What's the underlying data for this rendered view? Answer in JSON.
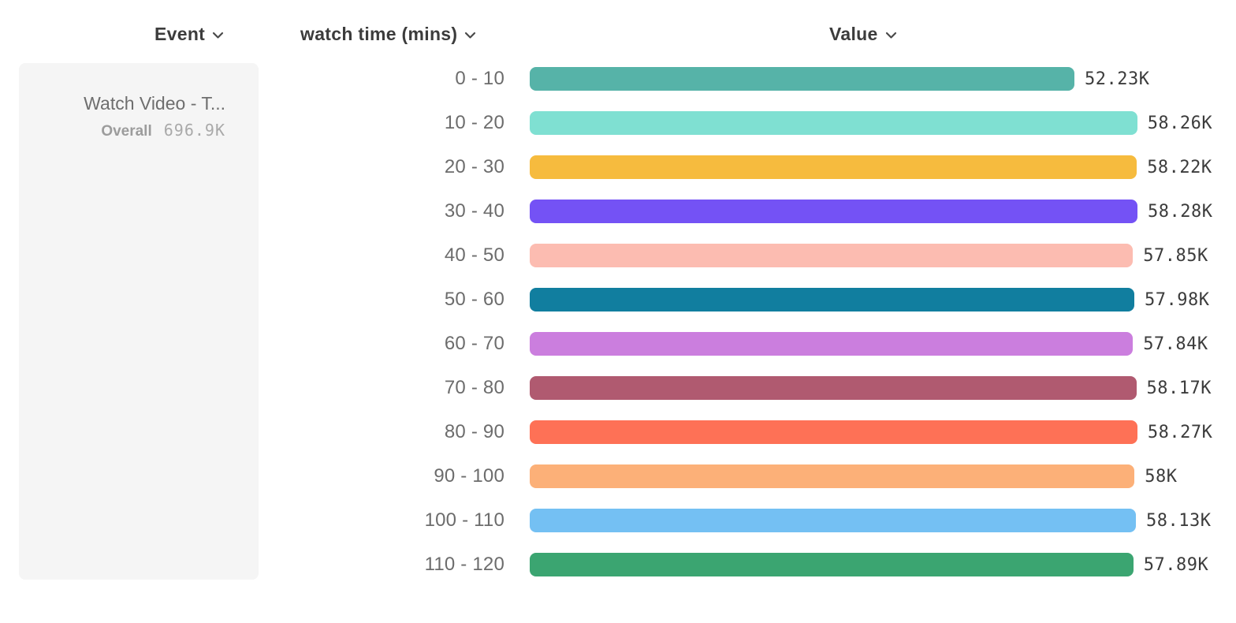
{
  "headers": {
    "event": "Event",
    "watch_time": "watch time (mins)",
    "value": "Value"
  },
  "event_card": {
    "event_name": "Watch Video - T...",
    "overall_label": "Overall",
    "overall_value": "696.9K",
    "card_bg": "#f5f5f5"
  },
  "chart_data": {
    "type": "bar",
    "orientation": "horizontal",
    "title": "",
    "xlabel": "Value",
    "ylabel": "watch time (mins)",
    "categories": [
      "0 - 10",
      "10 - 20",
      "20 - 30",
      "30 - 40",
      "40 - 50",
      "50 - 60",
      "60 - 70",
      "70 - 80",
      "80 - 90",
      "90 - 100",
      "100 - 110",
      "110 - 120"
    ],
    "values": [
      52230,
      58260,
      58220,
      58280,
      57850,
      57980,
      57840,
      58170,
      58270,
      58000,
      58130,
      57890
    ],
    "value_labels": [
      "52.23K",
      "58.26K",
      "58.22K",
      "58.28K",
      "57.85K",
      "57.98K",
      "57.84K",
      "58.17K",
      "58.27K",
      "58K",
      "58.13K",
      "57.89K"
    ],
    "bar_colors": [
      "#56b3a8",
      "#7fe0d2",
      "#f6bb3e",
      "#7452f5",
      "#fcbcb1",
      "#117e9f",
      "#cb7ede",
      "#b05a70",
      "#fe7156",
      "#fcb078",
      "#74c0f3",
      "#3ba571"
    ],
    "xlim": [
      0,
      58280
    ],
    "grid": false,
    "legend": "none"
  },
  "icons": {
    "chevron_down": "chevron-down-icon"
  }
}
